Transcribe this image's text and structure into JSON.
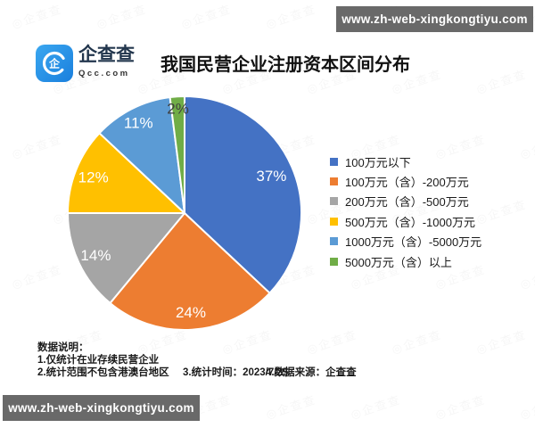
{
  "top_banner": {
    "text": "www.zh-web-xingkongtiyu.com",
    "bg": "#696969",
    "color": "#ffffff"
  },
  "bottom_banner": {
    "text": "www.zh-web-xingkongtiyu.com",
    "bg": "#696969",
    "color": "#ffffff"
  },
  "logo": {
    "name": "企查查",
    "sub": "Qcc.com",
    "icon_color": "#1E88E5"
  },
  "title": "我国民营企业注册资本区间分布",
  "chart_data": {
    "type": "pie",
    "title": "我国民营企业注册资本区间分布",
    "total": 100,
    "start_angle_deg": 0,
    "clockwise": true,
    "legend_position": "right",
    "series": [
      {
        "label": "100万元以下",
        "value": 37,
        "pct_label": "37%",
        "color": "#4472C4",
        "label_color": "#ffffff",
        "label_r": 0.81
      },
      {
        "label": "100万元（含）-200万元",
        "value": 24,
        "pct_label": "24%",
        "color": "#ED7D31",
        "label_color": "#ffffff",
        "label_r": 0.85
      },
      {
        "label": "200万元（含）-500万元",
        "value": 14,
        "pct_label": "14%",
        "color": "#A5A5A5",
        "label_color": "#ffffff",
        "label_r": 0.84
      },
      {
        "label": "500万元（含）-1000万元",
        "value": 12,
        "pct_label": "12%",
        "color": "#FFC000",
        "label_color": "#ffffff",
        "label_r": 0.84
      },
      {
        "label": "1000万元（含）-5000万元",
        "value": 11,
        "pct_label": "11%",
        "color": "#5B9BD5",
        "label_color": "#ffffff",
        "label_r": 0.87
      },
      {
        "label": "5000万元（含）以上",
        "value": 2,
        "pct_label": "2%",
        "color": "#70AD47",
        "label_color": "#3f3f3f",
        "label_r": 0.9
      }
    ]
  },
  "footer": {
    "heading": "数据说明：",
    "note1": "1.仅统计在业存续民营企业",
    "note2": "2.统计范围不包含港澳台地区",
    "note3": "3.统计时间：2023/7/25",
    "note4": "4.数据来源：企查查"
  },
  "watermark": {
    "text": "企查查"
  }
}
